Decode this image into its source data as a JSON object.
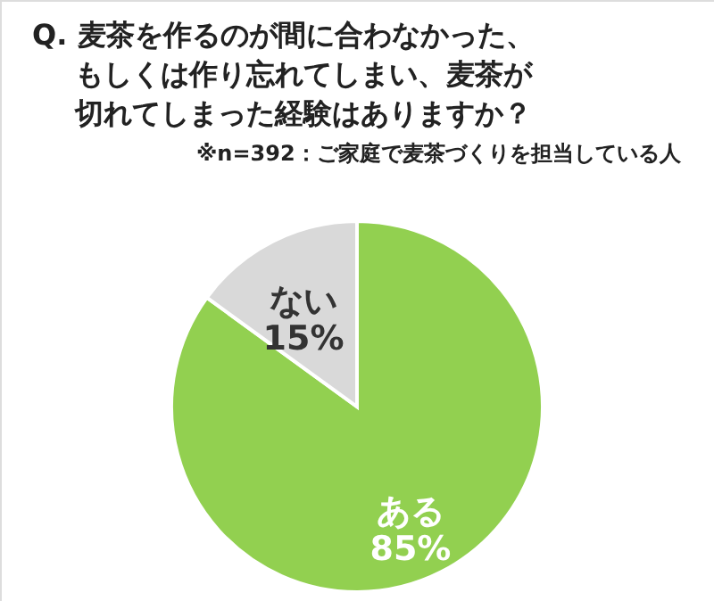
{
  "chart_data": {
    "type": "pie",
    "title": "Q. 麦茶を作るのが間に合わなかった、もしくは作り忘れてしまい、麦茶が切れてしまった経験はありますか？",
    "subtitle": "※n=392：ご家庭で麦茶づくりを担当している人",
    "categories": [
      "ある",
      "ない"
    ],
    "values": [
      85,
      15
    ],
    "colors": [
      "#92d050",
      "#d9d9d9"
    ],
    "value_labels": [
      "85%",
      "15%"
    ]
  }
}
